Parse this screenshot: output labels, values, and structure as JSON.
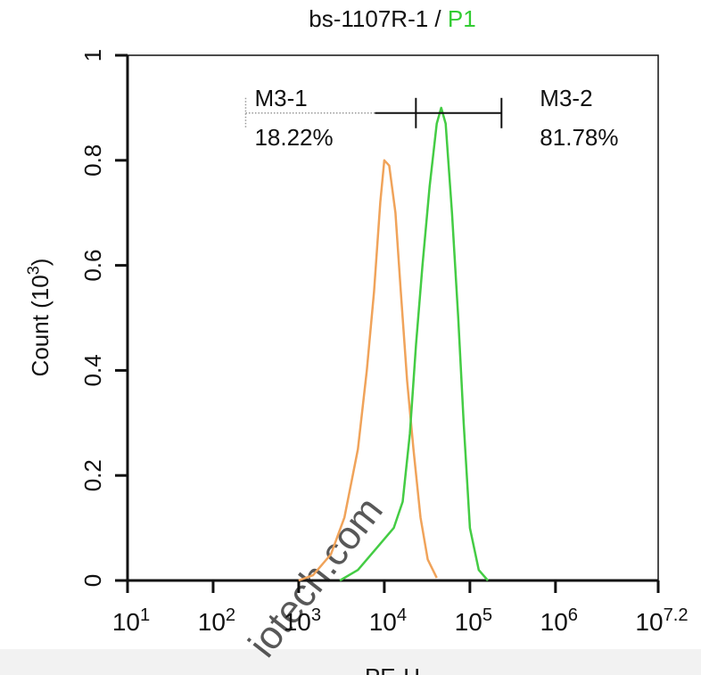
{
  "chart_data": {
    "type": "line",
    "title": {
      "text": "bs-1107R-1 /",
      "gate": "P1",
      "gate_color": "#33cc33"
    },
    "x_label": "PE-H",
    "y_label": "Count (10^3)",
    "xscale": "log",
    "xlim": [
      10,
      15848932
    ],
    "xticks": [
      {
        "value": 10,
        "label": "10^1"
      },
      {
        "value": 100,
        "label": "10^2"
      },
      {
        "value": 1000,
        "label": "10^3"
      },
      {
        "value": 10000,
        "label": "10^4"
      },
      {
        "value": 100000,
        "label": "10^5"
      },
      {
        "value": 1000000,
        "label": "10^6"
      },
      {
        "value": 15848932,
        "label": "10^7.2"
      }
    ],
    "ylim": [
      0,
      1
    ],
    "yticks": [
      0,
      0.2,
      0.4,
      0.6,
      0.8,
      1
    ],
    "series": [
      {
        "color": "#f0a35a",
        "x": [
          1000,
          1470,
          2380,
          3420,
          4910,
          6250,
          7580,
          8970,
          10000,
          11400,
          13500,
          15600,
          18500,
          21900,
          26500,
          32200,
          41000
        ],
        "values": [
          0,
          0.01,
          0.05,
          0.12,
          0.25,
          0.4,
          0.55,
          0.72,
          0.8,
          0.79,
          0.7,
          0.55,
          0.38,
          0.25,
          0.12,
          0.04,
          0.005
        ]
      },
      {
        "color": "#44cc44",
        "x": [
          3030,
          4910,
          7960,
          12900,
          16400,
          19900,
          23500,
          27900,
          33800,
          41000,
          46200,
          52100,
          61800,
          73100,
          84500,
          100000,
          127000,
          162000
        ],
        "values": [
          0,
          0.02,
          0.06,
          0.1,
          0.15,
          0.28,
          0.45,
          0.6,
          0.75,
          0.87,
          0.9,
          0.87,
          0.7,
          0.5,
          0.3,
          0.1,
          0.02,
          0
        ]
      }
    ],
    "markers": {
      "names": [
        "M3-1",
        "M3-2"
      ],
      "values": [
        18.22,
        81.78
      ],
      "value_labels": [
        "18.22%",
        "81.78%"
      ],
      "ranges": [
        [
          240,
          23400
        ],
        [
          23400,
          234000
        ]
      ],
      "y": 0.89
    },
    "watermark": "iotech.com"
  }
}
